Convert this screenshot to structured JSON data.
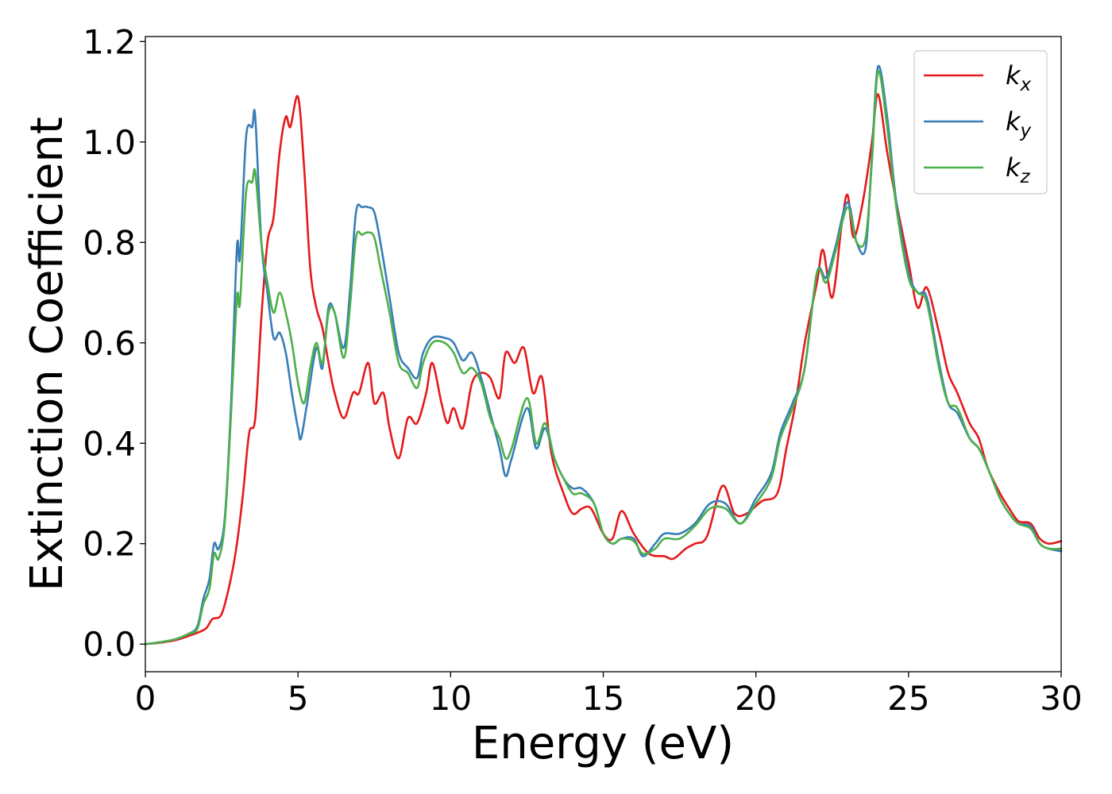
{
  "chart_data": {
    "type": "line",
    "title": "",
    "xlabel": "Energy (eV)",
    "ylabel": "Extinction Coefficient",
    "xlim": [
      0,
      30
    ],
    "ylim": [
      -0.055,
      1.21
    ],
    "xticks": [
      0,
      5,
      10,
      15,
      20,
      25,
      30
    ],
    "yticks": [
      0.0,
      0.2,
      0.4,
      0.6,
      0.8,
      1.0,
      1.2
    ],
    "xtick_labels": [
      "0",
      "5",
      "10",
      "15",
      "20",
      "25",
      "30"
    ],
    "ytick_labels": [
      "0.0",
      "0.2",
      "0.4",
      "0.6",
      "0.8",
      "1.0",
      "1.2"
    ],
    "grid": false,
    "legend_position": "top-right",
    "series": [
      {
        "name": "k_x",
        "label_base": "k",
        "label_sub": "x",
        "color": "#e41a1c",
        "points": [
          [
            0,
            0
          ],
          [
            0.5,
            0.003
          ],
          [
            1.0,
            0.008
          ],
          [
            1.5,
            0.018
          ],
          [
            1.8,
            0.025
          ],
          [
            2.0,
            0.032
          ],
          [
            2.2,
            0.05
          ],
          [
            2.5,
            0.06
          ],
          [
            2.8,
            0.13
          ],
          [
            3.0,
            0.2
          ],
          [
            3.2,
            0.3
          ],
          [
            3.4,
            0.42
          ],
          [
            3.6,
            0.45
          ],
          [
            3.8,
            0.65
          ],
          [
            4.0,
            0.8
          ],
          [
            4.2,
            0.85
          ],
          [
            4.4,
            0.98
          ],
          [
            4.6,
            1.05
          ],
          [
            4.75,
            1.03
          ],
          [
            5.0,
            1.09
          ],
          [
            5.2,
            0.95
          ],
          [
            5.4,
            0.75
          ],
          [
            5.6,
            0.67
          ],
          [
            5.8,
            0.63
          ],
          [
            6.0,
            0.56
          ],
          [
            6.2,
            0.5
          ],
          [
            6.5,
            0.45
          ],
          [
            6.8,
            0.5
          ],
          [
            7.0,
            0.5
          ],
          [
            7.3,
            0.56
          ],
          [
            7.5,
            0.48
          ],
          [
            7.8,
            0.5
          ],
          [
            8.0,
            0.43
          ],
          [
            8.3,
            0.37
          ],
          [
            8.6,
            0.45
          ],
          [
            8.9,
            0.44
          ],
          [
            9.2,
            0.5
          ],
          [
            9.4,
            0.56
          ],
          [
            9.7,
            0.48
          ],
          [
            9.9,
            0.44
          ],
          [
            10.1,
            0.47
          ],
          [
            10.4,
            0.43
          ],
          [
            10.7,
            0.52
          ],
          [
            11.0,
            0.54
          ],
          [
            11.3,
            0.53
          ],
          [
            11.6,
            0.49
          ],
          [
            11.8,
            0.58
          ],
          [
            12.1,
            0.56
          ],
          [
            12.4,
            0.59
          ],
          [
            12.7,
            0.5
          ],
          [
            13.0,
            0.53
          ],
          [
            13.3,
            0.38
          ],
          [
            13.7,
            0.3
          ],
          [
            14.0,
            0.26
          ],
          [
            14.3,
            0.27
          ],
          [
            14.6,
            0.27
          ],
          [
            15.0,
            0.22
          ],
          [
            15.3,
            0.21
          ],
          [
            15.6,
            0.265
          ],
          [
            16.0,
            0.22
          ],
          [
            16.5,
            0.18
          ],
          [
            17.0,
            0.175
          ],
          [
            17.3,
            0.17
          ],
          [
            17.7,
            0.19
          ],
          [
            18.0,
            0.2
          ],
          [
            18.4,
            0.215
          ],
          [
            18.9,
            0.315
          ],
          [
            19.3,
            0.26
          ],
          [
            19.7,
            0.26
          ],
          [
            20.2,
            0.285
          ],
          [
            20.7,
            0.3
          ],
          [
            21.0,
            0.39
          ],
          [
            21.3,
            0.48
          ],
          [
            21.6,
            0.6
          ],
          [
            22.0,
            0.72
          ],
          [
            22.2,
            0.785
          ],
          [
            22.5,
            0.69
          ],
          [
            22.8,
            0.83
          ],
          [
            23.0,
            0.895
          ],
          [
            23.2,
            0.81
          ],
          [
            23.5,
            0.88
          ],
          [
            23.8,
            1.0
          ],
          [
            24.0,
            1.095
          ],
          [
            24.3,
            0.98
          ],
          [
            24.6,
            0.88
          ],
          [
            25.0,
            0.76
          ],
          [
            25.3,
            0.67
          ],
          [
            25.6,
            0.71
          ],
          [
            26.0,
            0.62
          ],
          [
            26.3,
            0.54
          ],
          [
            26.6,
            0.5
          ],
          [
            27.0,
            0.44
          ],
          [
            27.3,
            0.41
          ],
          [
            27.6,
            0.35
          ],
          [
            28.0,
            0.3
          ],
          [
            28.3,
            0.27
          ],
          [
            28.6,
            0.245
          ],
          [
            29.0,
            0.24
          ],
          [
            29.3,
            0.21
          ],
          [
            29.6,
            0.2
          ],
          [
            30.0,
            0.205
          ]
        ]
      },
      {
        "name": "k_y",
        "label_base": "k",
        "label_sub": "y",
        "color": "#377eb8",
        "points": [
          [
            0,
            0
          ],
          [
            0.5,
            0.004
          ],
          [
            1.0,
            0.01
          ],
          [
            1.4,
            0.02
          ],
          [
            1.7,
            0.035
          ],
          [
            1.9,
            0.09
          ],
          [
            2.1,
            0.13
          ],
          [
            2.25,
            0.2
          ],
          [
            2.4,
            0.19
          ],
          [
            2.6,
            0.25
          ],
          [
            2.8,
            0.47
          ],
          [
            3.0,
            0.79
          ],
          [
            3.1,
            0.77
          ],
          [
            3.3,
            1.01
          ],
          [
            3.5,
            1.03
          ],
          [
            3.6,
            1.05
          ],
          [
            3.8,
            0.8
          ],
          [
            4.0,
            0.7
          ],
          [
            4.2,
            0.61
          ],
          [
            4.4,
            0.62
          ],
          [
            4.6,
            0.58
          ],
          [
            4.8,
            0.5
          ],
          [
            5.0,
            0.43
          ],
          [
            5.1,
            0.41
          ],
          [
            5.3,
            0.48
          ],
          [
            5.6,
            0.59
          ],
          [
            5.8,
            0.55
          ],
          [
            6.0,
            0.67
          ],
          [
            6.2,
            0.66
          ],
          [
            6.5,
            0.59
          ],
          [
            6.7,
            0.7
          ],
          [
            6.9,
            0.86
          ],
          [
            7.1,
            0.87
          ],
          [
            7.3,
            0.87
          ],
          [
            7.5,
            0.86
          ],
          [
            7.7,
            0.8
          ],
          [
            8.0,
            0.69
          ],
          [
            8.3,
            0.58
          ],
          [
            8.6,
            0.55
          ],
          [
            8.9,
            0.53
          ],
          [
            9.1,
            0.58
          ],
          [
            9.4,
            0.61
          ],
          [
            9.8,
            0.61
          ],
          [
            10.1,
            0.6
          ],
          [
            10.4,
            0.565
          ],
          [
            10.7,
            0.58
          ],
          [
            11.0,
            0.53
          ],
          [
            11.3,
            0.46
          ],
          [
            11.6,
            0.39
          ],
          [
            11.8,
            0.335
          ],
          [
            12.0,
            0.37
          ],
          [
            12.5,
            0.47
          ],
          [
            12.8,
            0.39
          ],
          [
            13.1,
            0.43
          ],
          [
            13.4,
            0.37
          ],
          [
            13.7,
            0.33
          ],
          [
            14.0,
            0.31
          ],
          [
            14.3,
            0.31
          ],
          [
            14.7,
            0.28
          ],
          [
            15.0,
            0.22
          ],
          [
            15.3,
            0.2
          ],
          [
            15.6,
            0.21
          ],
          [
            16.0,
            0.21
          ],
          [
            16.3,
            0.175
          ],
          [
            16.7,
            0.2
          ],
          [
            17.0,
            0.22
          ],
          [
            17.5,
            0.22
          ],
          [
            18.0,
            0.24
          ],
          [
            18.5,
            0.28
          ],
          [
            19.0,
            0.28
          ],
          [
            19.5,
            0.24
          ],
          [
            20.0,
            0.29
          ],
          [
            20.5,
            0.34
          ],
          [
            20.8,
            0.42
          ],
          [
            21.2,
            0.48
          ],
          [
            21.6,
            0.55
          ],
          [
            22.0,
            0.74
          ],
          [
            22.3,
            0.73
          ],
          [
            22.6,
            0.79
          ],
          [
            23.0,
            0.88
          ],
          [
            23.3,
            0.8
          ],
          [
            23.6,
            0.79
          ],
          [
            23.8,
            0.97
          ],
          [
            24.0,
            1.15
          ],
          [
            24.3,
            1.05
          ],
          [
            24.6,
            0.88
          ],
          [
            25.0,
            0.74
          ],
          [
            25.3,
            0.7
          ],
          [
            25.6,
            0.69
          ],
          [
            26.0,
            0.56
          ],
          [
            26.3,
            0.48
          ],
          [
            26.6,
            0.46
          ],
          [
            27.0,
            0.41
          ],
          [
            27.3,
            0.39
          ],
          [
            27.6,
            0.35
          ],
          [
            28.0,
            0.29
          ],
          [
            28.3,
            0.26
          ],
          [
            28.6,
            0.24
          ],
          [
            29.0,
            0.235
          ],
          [
            29.3,
            0.2
          ],
          [
            29.6,
            0.19
          ],
          [
            30.0,
            0.185
          ]
        ]
      },
      {
        "name": "k_z",
        "label_base": "k",
        "label_sub": "z",
        "color": "#4daf4a",
        "points": [
          [
            0,
            0
          ],
          [
            0.5,
            0.004
          ],
          [
            1.0,
            0.01
          ],
          [
            1.4,
            0.02
          ],
          [
            1.7,
            0.03
          ],
          [
            1.9,
            0.08
          ],
          [
            2.1,
            0.11
          ],
          [
            2.25,
            0.18
          ],
          [
            2.4,
            0.17
          ],
          [
            2.6,
            0.24
          ],
          [
            2.8,
            0.45
          ],
          [
            3.0,
            0.69
          ],
          [
            3.1,
            0.68
          ],
          [
            3.3,
            0.9
          ],
          [
            3.5,
            0.92
          ],
          [
            3.6,
            0.94
          ],
          [
            3.8,
            0.8
          ],
          [
            4.0,
            0.72
          ],
          [
            4.2,
            0.66
          ],
          [
            4.4,
            0.7
          ],
          [
            4.6,
            0.66
          ],
          [
            4.8,
            0.6
          ],
          [
            5.0,
            0.52
          ],
          [
            5.2,
            0.48
          ],
          [
            5.4,
            0.55
          ],
          [
            5.6,
            0.6
          ],
          [
            5.8,
            0.56
          ],
          [
            6.0,
            0.66
          ],
          [
            6.2,
            0.66
          ],
          [
            6.5,
            0.57
          ],
          [
            6.7,
            0.67
          ],
          [
            6.9,
            0.81
          ],
          [
            7.1,
            0.815
          ],
          [
            7.3,
            0.82
          ],
          [
            7.5,
            0.81
          ],
          [
            7.7,
            0.75
          ],
          [
            8.0,
            0.66
          ],
          [
            8.3,
            0.56
          ],
          [
            8.6,
            0.54
          ],
          [
            8.9,
            0.51
          ],
          [
            9.1,
            0.56
          ],
          [
            9.4,
            0.6
          ],
          [
            9.8,
            0.6
          ],
          [
            10.1,
            0.58
          ],
          [
            10.4,
            0.54
          ],
          [
            10.7,
            0.55
          ],
          [
            11.0,
            0.52
          ],
          [
            11.3,
            0.45
          ],
          [
            11.6,
            0.41
          ],
          [
            11.8,
            0.37
          ],
          [
            12.0,
            0.39
          ],
          [
            12.5,
            0.49
          ],
          [
            12.8,
            0.4
          ],
          [
            13.1,
            0.44
          ],
          [
            13.4,
            0.37
          ],
          [
            13.7,
            0.33
          ],
          [
            14.0,
            0.3
          ],
          [
            14.3,
            0.3
          ],
          [
            14.7,
            0.28
          ],
          [
            15.0,
            0.22
          ],
          [
            15.3,
            0.2
          ],
          [
            15.6,
            0.21
          ],
          [
            16.0,
            0.205
          ],
          [
            16.3,
            0.18
          ],
          [
            16.7,
            0.19
          ],
          [
            17.0,
            0.21
          ],
          [
            17.5,
            0.21
          ],
          [
            18.0,
            0.235
          ],
          [
            18.5,
            0.27
          ],
          [
            19.0,
            0.27
          ],
          [
            19.5,
            0.24
          ],
          [
            20.0,
            0.28
          ],
          [
            20.5,
            0.33
          ],
          [
            20.8,
            0.41
          ],
          [
            21.2,
            0.47
          ],
          [
            21.6,
            0.55
          ],
          [
            22.0,
            0.74
          ],
          [
            22.3,
            0.72
          ],
          [
            22.6,
            0.78
          ],
          [
            23.0,
            0.87
          ],
          [
            23.3,
            0.8
          ],
          [
            23.6,
            0.81
          ],
          [
            23.8,
            0.96
          ],
          [
            24.0,
            1.14
          ],
          [
            24.3,
            1.03
          ],
          [
            24.6,
            0.87
          ],
          [
            25.0,
            0.73
          ],
          [
            25.3,
            0.7
          ],
          [
            25.6,
            0.68
          ],
          [
            26.0,
            0.55
          ],
          [
            26.3,
            0.48
          ],
          [
            26.6,
            0.47
          ],
          [
            27.0,
            0.41
          ],
          [
            27.3,
            0.39
          ],
          [
            27.6,
            0.35
          ],
          [
            28.0,
            0.29
          ],
          [
            28.3,
            0.26
          ],
          [
            28.6,
            0.24
          ],
          [
            29.0,
            0.23
          ],
          [
            29.3,
            0.2
          ],
          [
            29.6,
            0.19
          ],
          [
            30.0,
            0.19
          ]
        ]
      }
    ]
  }
}
